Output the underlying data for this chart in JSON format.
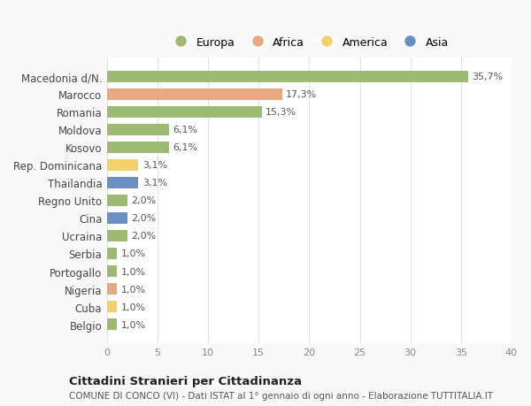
{
  "categories": [
    "Belgio",
    "Cuba",
    "Nigeria",
    "Portogallo",
    "Serbia",
    "Ucraina",
    "Cina",
    "Regno Unito",
    "Thailandia",
    "Rep. Dominicana",
    "Kosovo",
    "Moldova",
    "Romania",
    "Marocco",
    "Macedonia d/N."
  ],
  "values": [
    1.0,
    1.0,
    1.0,
    1.0,
    1.0,
    2.0,
    2.0,
    2.0,
    3.1,
    3.1,
    6.1,
    6.1,
    15.3,
    17.3,
    35.7
  ],
  "labels": [
    "1,0%",
    "1,0%",
    "1,0%",
    "1,0%",
    "1,0%",
    "2,0%",
    "2,0%",
    "2,0%",
    "3,1%",
    "3,1%",
    "6,1%",
    "6,1%",
    "15,3%",
    "17,3%",
    "35,7%"
  ],
  "continent": [
    "Europa",
    "America",
    "Africa",
    "Europa",
    "Europa",
    "Europa",
    "Asia",
    "Europa",
    "Asia",
    "America",
    "Europa",
    "Europa",
    "Europa",
    "Africa",
    "Europa"
  ],
  "colors": {
    "Europa": "#9dba72",
    "Africa": "#e8a882",
    "America": "#f2d06b",
    "Asia": "#6b8fc2"
  },
  "title1": "Cittadini Stranieri per Cittadinanza",
  "title2": "COMUNE DI CONCO (VI) - Dati ISTAT al 1° gennaio di ogni anno - Elaborazione TUTTITALIA.IT",
  "xlim": [
    0,
    40
  ],
  "xticks": [
    0,
    5,
    10,
    15,
    20,
    25,
    30,
    35,
    40
  ],
  "bg_color": "#f8f8f8",
  "plot_bg_color": "#ffffff",
  "grid_color": "#e0e0e0",
  "legend_entries": [
    "Europa",
    "Africa",
    "America",
    "Asia"
  ]
}
